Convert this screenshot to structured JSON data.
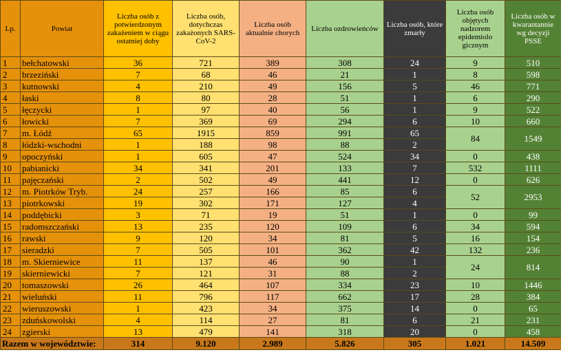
{
  "headers": {
    "lp": "Lp.",
    "powiat": "Powiat",
    "new": "Liczba osób z potwierdzonym zakażeniem w ciągu ostatniej doby",
    "total": "Liczba osób, dotychczas zakażonych SARS-CoV-2",
    "active": "Liczba osób aktualnie chorych",
    "recovered": "Liczba ozdrowieńców",
    "deaths": "Liczba osób, które zmarły",
    "supervision": "Liczba osób objętych nadzorem epidemiolo gicznym",
    "quarantine": "Liczba osób w kwarantannie wg decyzji PSSE"
  },
  "rows": [
    {
      "lp": "1",
      "powiat": "bełchatowski",
      "new": "36",
      "total": "721",
      "active": "389",
      "recovered": "308",
      "deaths": "24",
      "supervision": "9",
      "quarantine": "510"
    },
    {
      "lp": "2",
      "powiat": "brzeziński",
      "new": "7",
      "total": "68",
      "active": "46",
      "recovered": "21",
      "deaths": "1",
      "supervision": "8",
      "quarantine": "598"
    },
    {
      "lp": "3",
      "powiat": "kutnowski",
      "new": "4",
      "total": "210",
      "active": "49",
      "recovered": "156",
      "deaths": "5",
      "supervision": "46",
      "quarantine": "771"
    },
    {
      "lp": "4",
      "powiat": "łaski",
      "new": "8",
      "total": "80",
      "active": "28",
      "recovered": "51",
      "deaths": "1",
      "supervision": "6",
      "quarantine": "290"
    },
    {
      "lp": "5",
      "powiat": "łęczycki",
      "new": "1",
      "total": "97",
      "active": "40",
      "recovered": "56",
      "deaths": "1",
      "supervision": "9",
      "quarantine": "522"
    },
    {
      "lp": "6",
      "powiat": "łowicki",
      "new": "7",
      "total": "369",
      "active": "69",
      "recovered": "294",
      "deaths": "6",
      "supervision": "10",
      "quarantine": "660"
    },
    {
      "lp": "7",
      "powiat": "m. Łódź",
      "new": "65",
      "total": "1915",
      "active": "859",
      "recovered": "991",
      "deaths": "65",
      "supervision": "84",
      "quarantine": "1549"
    },
    {
      "lp": "8",
      "powiat": "łódzki-wschodni",
      "new": "1",
      "total": "188",
      "active": "98",
      "recovered": "88",
      "deaths": "2",
      "supervision": "",
      "quarantine": ""
    },
    {
      "lp": "9",
      "powiat": "opoczyński",
      "new": "1",
      "total": "605",
      "active": "47",
      "recovered": "524",
      "deaths": "34",
      "supervision": "0",
      "quarantine": "438"
    },
    {
      "lp": "10",
      "powiat": "pabianicki",
      "new": "34",
      "total": "341",
      "active": "201",
      "recovered": "133",
      "deaths": "7",
      "supervision": "532",
      "quarantine": "1111"
    },
    {
      "lp": "11",
      "powiat": "pajęczański",
      "new": "2",
      "total": "502",
      "active": "49",
      "recovered": "441",
      "deaths": "12",
      "supervision": "0",
      "quarantine": "626"
    },
    {
      "lp": "12",
      "powiat": "m. Piotrków Tryb.",
      "new": "24",
      "total": "257",
      "active": "166",
      "recovered": "85",
      "deaths": "6",
      "supervision": "52",
      "quarantine": "2953"
    },
    {
      "lp": "13",
      "powiat": "piotrkowski",
      "new": "19",
      "total": "302",
      "active": "171",
      "recovered": "127",
      "deaths": "4",
      "supervision": "",
      "quarantine": ""
    },
    {
      "lp": "14",
      "powiat": "poddębicki",
      "new": "3",
      "total": "71",
      "active": "19",
      "recovered": "51",
      "deaths": "1",
      "supervision": "0",
      "quarantine": "99"
    },
    {
      "lp": "15",
      "powiat": "radomszczański",
      "new": "13",
      "total": "235",
      "active": "120",
      "recovered": "109",
      "deaths": "6",
      "supervision": "34",
      "quarantine": "594"
    },
    {
      "lp": "16",
      "powiat": "rawski",
      "new": "9",
      "total": "120",
      "active": "34",
      "recovered": "81",
      "deaths": "5",
      "supervision": "16",
      "quarantine": "154"
    },
    {
      "lp": "17",
      "powiat": "sieradzki",
      "new": "7",
      "total": "505",
      "active": "101",
      "recovered": "362",
      "deaths": "42",
      "supervision": "132",
      "quarantine": "236"
    },
    {
      "lp": "18",
      "powiat": "m. Skierniewice",
      "new": "11",
      "total": "137",
      "active": "46",
      "recovered": "90",
      "deaths": "1",
      "supervision": "24",
      "quarantine": "814"
    },
    {
      "lp": "19",
      "powiat": "skierniewicki",
      "new": "7",
      "total": "121",
      "active": "31",
      "recovered": "88",
      "deaths": "2",
      "supervision": "",
      "quarantine": ""
    },
    {
      "lp": "20",
      "powiat": "tomaszowski",
      "new": "26",
      "total": "464",
      "active": "107",
      "recovered": "334",
      "deaths": "23",
      "supervision": "10",
      "quarantine": "1446"
    },
    {
      "lp": "21",
      "powiat": "wieluński",
      "new": "11",
      "total": "796",
      "active": "117",
      "recovered": "662",
      "deaths": "17",
      "supervision": "28",
      "quarantine": "384"
    },
    {
      "lp": "22",
      "powiat": "wieruszowski",
      "new": "1",
      "total": "423",
      "active": "34",
      "recovered": "375",
      "deaths": "14",
      "supervision": "0",
      "quarantine": "65"
    },
    {
      "lp": "23",
      "powiat": "zduńskowolski",
      "new": "4",
      "total": "114",
      "active": "27",
      "recovered": "81",
      "deaths": "6",
      "supervision": "21",
      "quarantine": "231"
    },
    {
      "lp": "24",
      "powiat": "zgierski",
      "new": "13",
      "total": "479",
      "active": "141",
      "recovered": "318",
      "deaths": "20",
      "supervision": "0",
      "quarantine": "458"
    }
  ],
  "totals": {
    "label": "Razem w województwie:",
    "new": "314",
    "total": "9.120",
    "active": "2.989",
    "recovered": "5.826",
    "deaths": "305",
    "supervision": "1.021",
    "quarantine": "14.509"
  },
  "merged_cells": {
    "supervision": [
      [
        7,
        2
      ],
      [
        12,
        2
      ],
      [
        18,
        2
      ]
    ],
    "quarantine": [
      [
        7,
        2
      ],
      [
        12,
        2
      ],
      [
        18,
        2
      ]
    ]
  },
  "colors": {
    "lp_powiat": "#e6910a",
    "new": "#ffc000",
    "total": "#ffe070",
    "active": "#f4b083",
    "recovered": "#a9d18e",
    "deaths": "#3b3b3b",
    "supervision": "#a9d18e",
    "quarantine": "#548235",
    "totals_row": "#c8781a"
  }
}
